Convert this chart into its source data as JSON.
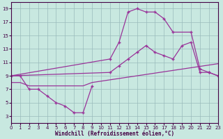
{
  "xlabel": "Windchill (Refroidissement éolien,°C)",
  "bg_color": "#c8e8e0",
  "line_color": "#993399",
  "grid_color": "#99bbbb",
  "ylim": [
    2,
    20
  ],
  "xlim": [
    0,
    23
  ],
  "yticks": [
    3,
    5,
    7,
    9,
    11,
    13,
    15,
    17,
    19
  ],
  "xticks": [
    0,
    1,
    2,
    3,
    4,
    5,
    6,
    7,
    8,
    9,
    10,
    11,
    12,
    13,
    14,
    15,
    16,
    17,
    18,
    19,
    20,
    21,
    22,
    23
  ],
  "curve_dip_x": [
    0,
    1,
    2,
    3,
    4,
    5,
    6,
    7,
    8,
    9
  ],
  "curve_dip_y": [
    9,
    9,
    7,
    7,
    6,
    5,
    4.5,
    3.5,
    3.5,
    7.5
  ],
  "curve_arch_x": [
    0,
    11,
    12,
    13,
    14,
    15,
    16,
    17,
    18,
    20,
    21,
    22,
    23
  ],
  "curve_arch_y": [
    9,
    11.5,
    14,
    18.5,
    19,
    18.5,
    18.5,
    17.5,
    15.5,
    15.5,
    10,
    9.5,
    9
  ],
  "curve_mid_x": [
    0,
    11,
    12,
    13,
    14,
    15,
    16,
    17,
    18,
    19,
    20,
    21,
    22,
    23
  ],
  "curve_mid_y": [
    9,
    9.5,
    10.5,
    11.5,
    12.5,
    13.5,
    12.5,
    12,
    11.5,
    13.5,
    14,
    9.5,
    9.5,
    9
  ],
  "curve_flat_x": [
    0,
    1,
    2,
    3,
    4,
    5,
    6,
    7,
    8,
    9,
    10,
    11,
    12,
    13,
    14,
    15,
    16,
    17,
    18,
    19,
    20,
    21,
    22,
    23
  ],
  "curve_flat_y": [
    8,
    8,
    7.5,
    7.5,
    7.5,
    7.5,
    7.5,
    7.5,
    7.5,
    8,
    8.2,
    8.4,
    8.6,
    8.8,
    9,
    9.2,
    9.4,
    9.6,
    9.8,
    10,
    10.2,
    10.4,
    10.6,
    10.8
  ]
}
